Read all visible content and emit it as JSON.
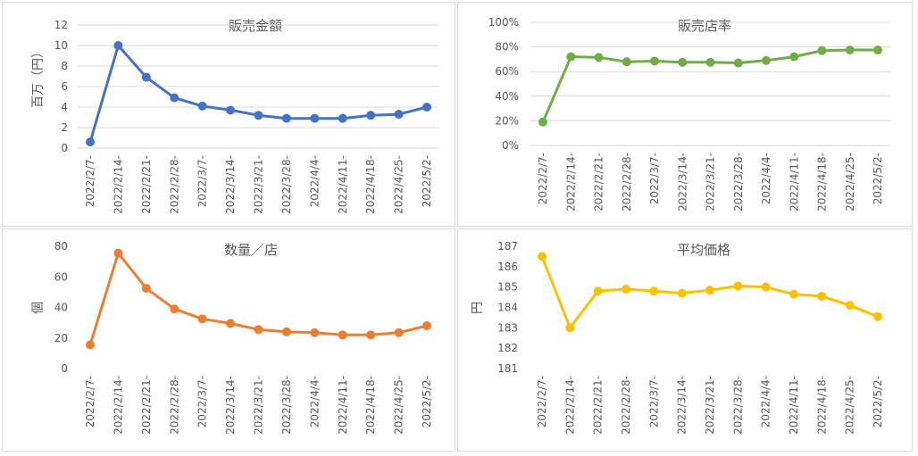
{
  "chart_data": [
    {
      "type": "line",
      "title": "販売金額",
      "ylabel": "百万（円）",
      "categories": [
        "2022/2/7-",
        "2022/2/14-",
        "2022/2/21-",
        "2022/2/28-",
        "2022/3/7-",
        "2022/3/14-",
        "2022/3/21-",
        "2022/3/28-",
        "2022/4/4-",
        "2022/4/11-",
        "2022/4/18-",
        "2022/4/25-",
        "2022/5/2-"
      ],
      "series": [
        {
          "values": [
            0.6,
            10.0,
            6.9,
            4.9,
            4.1,
            3.7,
            3.2,
            2.9,
            2.9,
            2.9,
            3.2,
            3.3,
            4.0
          ]
        }
      ],
      "ylim": [
        0,
        12
      ],
      "yticks": [
        "0",
        "2",
        "4",
        "6",
        "8",
        "10",
        "12"
      ],
      "grid": true,
      "color": "#4472C4"
    },
    {
      "type": "line",
      "title": "販売店率",
      "ylabel": "",
      "categories": [
        "2022/2/7-",
        "2022/2/14-",
        "2022/2/21-",
        "2022/2/28-",
        "2022/3/7-",
        "2022/3/14-",
        "2022/3/21-",
        "2022/3/28-",
        "2022/4/4-",
        "2022/4/11-",
        "2022/4/18-",
        "2022/4/25-",
        "2022/5/2-"
      ],
      "series": [
        {
          "values": [
            19,
            72,
            71.5,
            68,
            68.5,
            67.5,
            67.5,
            67,
            69,
            72,
            77,
            77.5,
            77.5
          ]
        }
      ],
      "ylim": [
        0,
        100
      ],
      "yticks": [
        "0%",
        "20%",
        "40%",
        "60%",
        "80%",
        "100%"
      ],
      "grid": true,
      "color": "#70AD47"
    },
    {
      "type": "line",
      "title": "数量／店",
      "ylabel": "個",
      "categories": [
        "2022/2/7-",
        "2022/2/14-",
        "2022/2/21-",
        "2022/2/28-",
        "2022/3/7-",
        "2022/3/14-",
        "2022/3/21-",
        "2022/3/28-",
        "2022/4/4-",
        "2022/4/11-",
        "2022/4/18-",
        "2022/4/25-",
        "2022/5/2-"
      ],
      "series": [
        {
          "values": [
            15.5,
            75.5,
            52.5,
            39,
            32.5,
            29.5,
            25.5,
            24,
            23.5,
            22,
            22,
            23.5,
            28
          ]
        }
      ],
      "ylim": [
        0,
        80
      ],
      "yticks": [
        "0",
        "20",
        "40",
        "60",
        "80"
      ],
      "grid": false,
      "color": "#ED7D31"
    },
    {
      "type": "line",
      "title": "平均価格",
      "ylabel": "円",
      "categories": [
        "2022/2/7-",
        "2022/2/14-",
        "2022/2/21-",
        "2022/2/28-",
        "2022/3/7-",
        "2022/3/14-",
        "2022/3/21-",
        "2022/3/28-",
        "2022/4/4-",
        "2022/4/11-",
        "2022/4/18-",
        "2022/4/25-",
        "2022/5/2-"
      ],
      "series": [
        {
          "values": [
            186.5,
            183.0,
            184.8,
            184.9,
            184.8,
            184.7,
            184.85,
            185.05,
            185.0,
            184.65,
            184.55,
            184.1,
            183.55
          ]
        }
      ],
      "ylim": [
        181,
        187
      ],
      "yticks": [
        "181",
        "182",
        "183",
        "184",
        "185",
        "186",
        "187"
      ],
      "grid": false,
      "color": "#FFC000"
    }
  ]
}
